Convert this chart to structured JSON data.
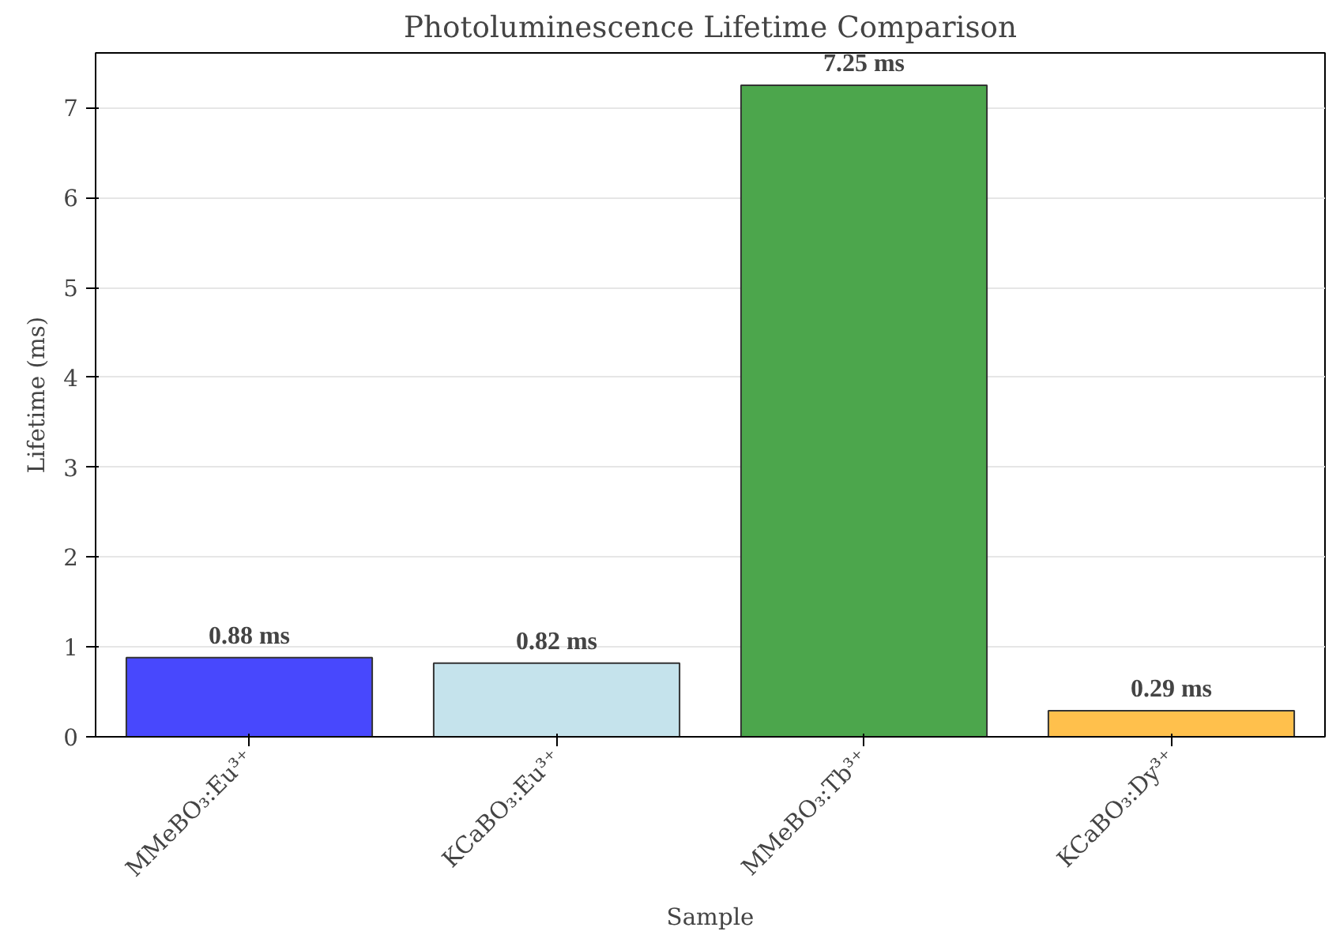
{
  "chart_data": {
    "type": "bar",
    "title": "Photoluminescence Lifetime Comparison",
    "xlabel": "Sample",
    "ylabel": "Lifetime (ms)",
    "categories": [
      "MMeBO₃:Eu³⁺",
      "KCaBO₃:Eu³⁺",
      "MMeBO₃:Tb³⁺",
      "KCaBO₃:Dy³⁺"
    ],
    "values": [
      0.88,
      0.82,
      7.25,
      0.29
    ],
    "colors": [
      "#4848fd",
      "#c5e3ec",
      "#4ca64c",
      "#ffc04c"
    ],
    "value_labels": [
      "0.88 ms",
      "0.82 ms",
      "7.25 ms",
      "0.29 ms"
    ],
    "ylim": [
      0,
      7.61
    ],
    "yticks": [
      0,
      1,
      2,
      3,
      4,
      5,
      6,
      7
    ],
    "grid": "y"
  }
}
